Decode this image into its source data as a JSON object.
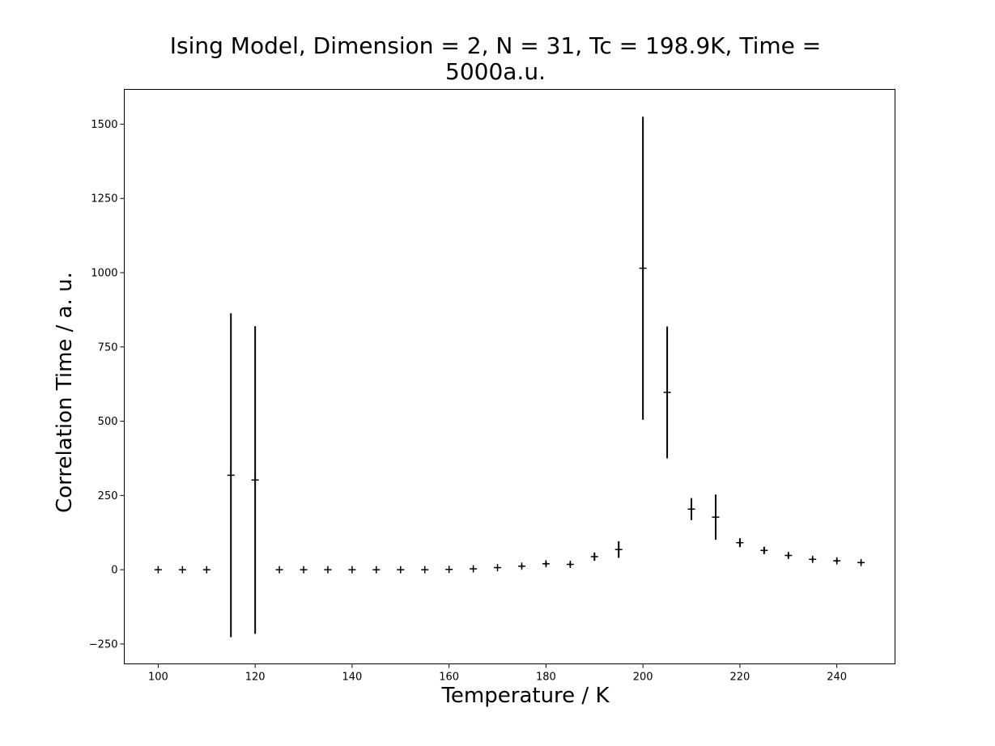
{
  "chart_data": {
    "type": "scatter",
    "title_line1": "Ising Model, Dimension = 2, N = 31, Tc = 198.9K, Time =",
    "title_line2": "5000a.u.",
    "xlabel": "Temperature / K",
    "ylabel": "Correlation Time / a. u.",
    "xlim": [
      93,
      252
    ],
    "ylim": [
      -317,
      1617
    ],
    "xticks": [
      100,
      120,
      140,
      160,
      180,
      200,
      220,
      240
    ],
    "yticks": [
      -250,
      0,
      250,
      500,
      750,
      1000,
      1250,
      1500
    ],
    "grid": false,
    "legend": false,
    "series": [
      {
        "points": [
          {
            "x": 100,
            "y": 0,
            "err": 0
          },
          {
            "x": 105,
            "y": 0,
            "err": 0
          },
          {
            "x": 110,
            "y": 0,
            "err": 0
          },
          {
            "x": 115,
            "y": 318,
            "err": 545
          },
          {
            "x": 120,
            "y": 302,
            "err": 518
          },
          {
            "x": 125,
            "y": 0,
            "err": 0
          },
          {
            "x": 130,
            "y": 0,
            "err": 0
          },
          {
            "x": 135,
            "y": 0,
            "err": 0
          },
          {
            "x": 140,
            "y": 0,
            "err": 0
          },
          {
            "x": 145,
            "y": 0,
            "err": 0
          },
          {
            "x": 150,
            "y": 0,
            "err": 0
          },
          {
            "x": 155,
            "y": 0,
            "err": 0
          },
          {
            "x": 160,
            "y": 1,
            "err": 0
          },
          {
            "x": 165,
            "y": 3,
            "err": 0
          },
          {
            "x": 170,
            "y": 7,
            "err": 0
          },
          {
            "x": 175,
            "y": 12,
            "err": 5
          },
          {
            "x": 180,
            "y": 20,
            "err": 7
          },
          {
            "x": 185,
            "y": 18,
            "err": 6
          },
          {
            "x": 190,
            "y": 44,
            "err": 14
          },
          {
            "x": 195,
            "y": 68,
            "err": 28
          },
          {
            "x": 200,
            "y": 1015,
            "err": 510
          },
          {
            "x": 205,
            "y": 597,
            "err": 222
          },
          {
            "x": 210,
            "y": 204,
            "err": 37
          },
          {
            "x": 215,
            "y": 177,
            "err": 76
          },
          {
            "x": 220,
            "y": 91,
            "err": 15
          },
          {
            "x": 225,
            "y": 65,
            "err": 12
          },
          {
            "x": 230,
            "y": 48,
            "err": 8
          },
          {
            "x": 235,
            "y": 35,
            "err": 6
          },
          {
            "x": 240,
            "y": 30,
            "err": 6
          },
          {
            "x": 245,
            "y": 24,
            "err": 5
          }
        ]
      }
    ]
  }
}
